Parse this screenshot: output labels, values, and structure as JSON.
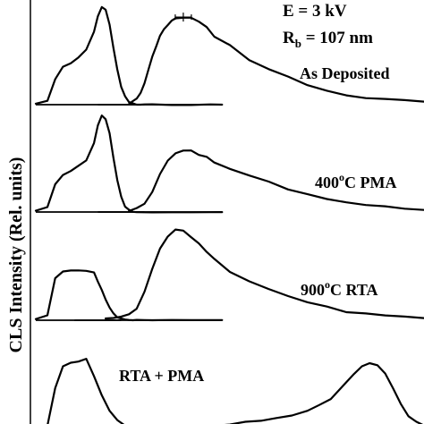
{
  "chart_data": {
    "type": "line",
    "ylabel": "CLS Intensity (Rel. units)",
    "xlabel": "",
    "x_range": [
      0,
      100
    ],
    "y_range_each_panel": [
      0,
      1
    ],
    "annotations": {
      "energy": "E = 3 kV",
      "rb_prefix": "R",
      "rb_subscript": "b",
      "rb_suffix": " = 107 nm"
    },
    "panels": [
      {
        "label": "As Deposited",
        "label_sup": "",
        "series": [
          {
            "x": [
              0,
              3,
              5,
              7,
              9,
              11,
              13,
              15,
              16,
              17,
              18,
              19,
              20,
              21,
              22,
              23,
              24,
              25,
              26,
              27,
              28,
              30,
              35,
              40,
              45,
              48
            ],
            "y": [
              0.01,
              0.04,
              0.25,
              0.38,
              0.42,
              0.48,
              0.55,
              0.75,
              0.9,
              0.99,
              0.96,
              0.82,
              0.58,
              0.35,
              0.18,
              0.08,
              0.03,
              0.01,
              0.0,
              0.0,
              0.0,
              0.0,
              0.0,
              0.0,
              0.0,
              0.0
            ]
          },
          {
            "x": [
              24,
              25,
              26,
              27,
              28,
              29,
              30,
              31,
              32,
              33,
              34,
              35,
              36,
              38,
              40,
              42,
              44,
              46,
              50,
              55,
              60,
              65,
              70,
              75,
              80,
              85,
              90,
              95,
              100
            ],
            "y": [
              0.01,
              0.03,
              0.06,
              0.12,
              0.22,
              0.35,
              0.48,
              0.6,
              0.7,
              0.76,
              0.81,
              0.85,
              0.87,
              0.89,
              0.88,
              0.84,
              0.78,
              0.7,
              0.6,
              0.46,
              0.36,
              0.28,
              0.2,
              0.14,
              0.1,
              0.07,
              0.05,
              0.04,
              0.03
            ]
          }
        ]
      },
      {
        "label": "400",
        "label_sup": "o",
        "label_suffix": "C PMA",
        "series": [
          {
            "x": [
              0,
              3,
              5,
              7,
              9,
              11,
              13,
              15,
              16,
              17,
              18,
              19,
              20,
              21,
              22,
              23,
              24,
              25,
              26,
              28,
              30,
              35,
              40,
              45,
              48
            ],
            "y": [
              0.01,
              0.04,
              0.28,
              0.38,
              0.42,
              0.48,
              0.52,
              0.7,
              0.88,
              0.98,
              0.95,
              0.8,
              0.55,
              0.32,
              0.15,
              0.06,
              0.02,
              0.0,
              0.0,
              0.0,
              0.0,
              0.0,
              0.0,
              0.0,
              0.0
            ]
          },
          {
            "x": [
              24,
              26,
              28,
              30,
              32,
              34,
              36,
              38,
              40,
              42,
              44,
              46,
              50,
              55,
              60,
              65,
              70,
              75,
              80,
              85,
              90,
              95,
              100
            ],
            "y": [
              0.01,
              0.03,
              0.08,
              0.2,
              0.38,
              0.52,
              0.6,
              0.63,
              0.62,
              0.59,
              0.55,
              0.5,
              0.44,
              0.37,
              0.3,
              0.24,
              0.18,
              0.14,
              0.1,
              0.07,
              0.05,
              0.04,
              0.03
            ]
          }
        ]
      },
      {
        "label": "900",
        "label_sup": "o",
        "label_suffix": "C RTA",
        "series": [
          {
            "x": [
              0,
              3,
              5,
              7,
              9,
              11,
              13,
              15,
              16,
              17,
              18,
              19,
              20,
              21,
              22,
              23,
              24,
              25,
              26,
              28,
              30,
              35,
              40,
              45,
              48
            ],
            "y": [
              0.01,
              0.04,
              0.42,
              0.5,
              0.51,
              0.51,
              0.51,
              0.48,
              0.4,
              0.3,
              0.2,
              0.12,
              0.06,
              0.03,
              0.02,
              0.01,
              0.0,
              0.0,
              0.0,
              0.0,
              0.0,
              0.0,
              0.0,
              0.0,
              0.0
            ]
          },
          {
            "x": [
              18,
              20,
              22,
              24,
              26,
              28,
              30,
              32,
              34,
              36,
              38,
              40,
              42,
              44,
              46,
              50,
              55,
              60,
              65,
              70,
              75,
              80,
              85,
              90,
              95,
              100
            ],
            "y": [
              0.02,
              0.02,
              0.03,
              0.05,
              0.12,
              0.28,
              0.52,
              0.72,
              0.85,
              0.92,
              0.9,
              0.85,
              0.78,
              0.7,
              0.62,
              0.5,
              0.4,
              0.32,
              0.24,
              0.18,
              0.13,
              0.09,
              0.06,
              0.04,
              0.03,
              0.02
            ]
          }
        ]
      },
      {
        "label": "RTA + PMA",
        "label_sup": "",
        "series": [
          {
            "x": [
              0,
              3,
              5,
              7,
              9,
              11,
              13,
              15,
              17,
              19,
              21,
              23,
              25,
              28,
              32,
              38,
              45,
              48
            ],
            "y": [
              0.0,
              0.02,
              0.4,
              0.62,
              0.66,
              0.68,
              0.7,
              0.52,
              0.32,
              0.18,
              0.08,
              0.02,
              0.0,
              0.0,
              0.0,
              0.0,
              0.0,
              0.0
            ]
          },
          {
            "x": [
              38,
              42,
              46,
              50,
              54,
              58,
              62,
              66,
              70,
              73,
              76,
              79,
              82,
              84,
              86,
              88,
              90,
              92,
              94,
              96,
              98,
              100
            ],
            "y": [
              0.0,
              0.01,
              0.02,
              0.04,
              0.06,
              0.08,
              0.1,
              0.13,
              0.17,
              0.22,
              0.3,
              0.42,
              0.55,
              0.62,
              0.66,
              0.64,
              0.55,
              0.4,
              0.25,
              0.12,
              0.05,
              0.02
            ]
          }
        ]
      }
    ]
  }
}
